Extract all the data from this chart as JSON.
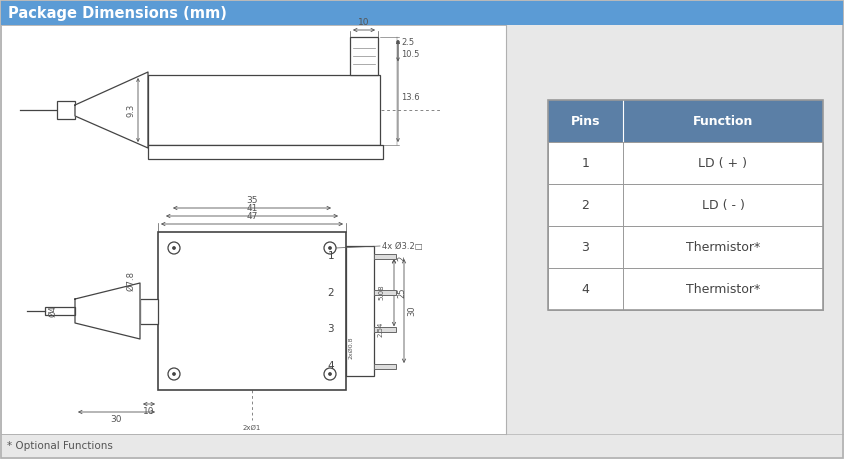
{
  "title": "Package Dimensions (mm)",
  "title_bg": "#5b9bd5",
  "title_color": "white",
  "outer_border_color": "#b0b0b0",
  "bg_color": "#e8e8e8",
  "drawing_bg": "white",
  "table_header_bg": "#5b7fa6",
  "table_header_color": "white",
  "table_bg": "white",
  "table_border": "#999999",
  "table_pins": [
    "1",
    "2",
    "3",
    "4"
  ],
  "table_functions": [
    "LD ( + )",
    "LD ( - )",
    "Thermistor*",
    "Thermistor*"
  ],
  "dim_color": "#555555",
  "draw_color": "#444444",
  "footnote": "* Optional Functions"
}
